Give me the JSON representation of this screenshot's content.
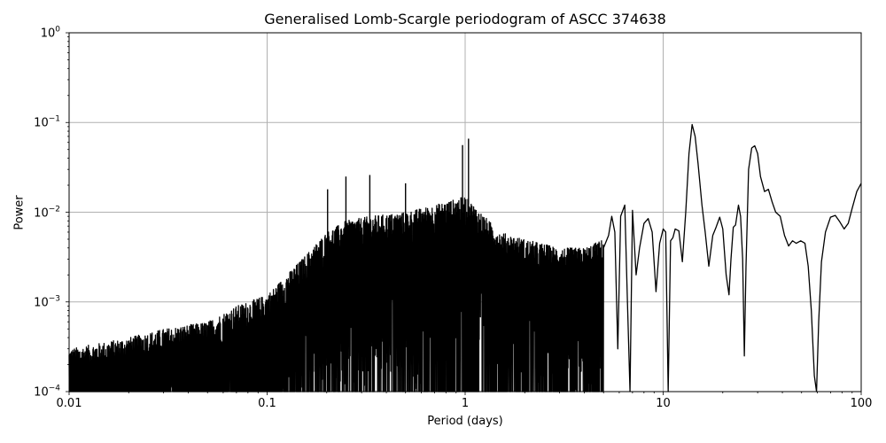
{
  "chart_data": {
    "type": "line",
    "title": "Generalised Lomb-Scargle periodogram of ASCC 374638",
    "xlabel": "Period (days)",
    "ylabel": "Power",
    "xscale": "log",
    "yscale": "log",
    "xlim": [
      0.01,
      100
    ],
    "ylim": [
      0.0001,
      1
    ],
    "grid": true,
    "legend": null,
    "line_color": "#000000",
    "grid_color": "#b0b0b0",
    "x_ticks": [
      {
        "value": 0.01,
        "label": "0.01"
      },
      {
        "value": 0.1,
        "label": "0.1"
      },
      {
        "value": 1,
        "label": "1"
      },
      {
        "value": 10,
        "label": "10"
      },
      {
        "value": 100,
        "label": "100"
      }
    ],
    "y_ticks": [
      {
        "value": 1,
        "base": "10",
        "exp": "0"
      },
      {
        "value": 0.1,
        "base": "10",
        "exp": "−1"
      },
      {
        "value": 0.01,
        "base": "10",
        "exp": "−2"
      },
      {
        "value": 0.001,
        "base": "10",
        "exp": "−3"
      },
      {
        "value": 0.0001,
        "base": "10",
        "exp": "−4"
      }
    ],
    "noisy_envelope": {
      "description": "Dense oscillating periodogram region (approximate upper envelope of peaks) for periods 0.01–5 d",
      "period": [
        0.01,
        0.02,
        0.03,
        0.05,
        0.07,
        0.1,
        0.15,
        0.2,
        0.25,
        0.33,
        0.5,
        0.7,
        1.0,
        1.5,
        2.0,
        3.0,
        4.0,
        5.0
      ],
      "upper_power": [
        0.0003,
        0.0004,
        0.0005,
        0.0006,
        0.0009,
        0.0012,
        0.003,
        0.006,
        0.008,
        0.009,
        0.01,
        0.012,
        0.015,
        0.006,
        0.005,
        0.004,
        0.004,
        0.005
      ]
    },
    "notable_peaks": [
      {
        "period": 0.202,
        "power": 0.018
      },
      {
        "period": 0.25,
        "power": 0.025
      },
      {
        "period": 0.33,
        "power": 0.026
      },
      {
        "period": 0.5,
        "power": 0.021
      },
      {
        "period": 0.97,
        "power": 0.056
      },
      {
        "period": 1.04,
        "power": 0.066
      },
      {
        "period": 14.0,
        "power": 0.095
      },
      {
        "period": 28.5,
        "power": 0.055
      }
    ],
    "smooth_series": {
      "description": "Long-period smooth part of the periodogram",
      "period": [
        5.0,
        5.3,
        5.5,
        5.7,
        5.9,
        6.1,
        6.4,
        6.6,
        6.8,
        7.0,
        7.3,
        7.6,
        8.0,
        8.4,
        8.8,
        9.2,
        9.6,
        10.0,
        10.3,
        10.6,
        10.9,
        11.2,
        11.5,
        12.0,
        12.5,
        13.0,
        13.5,
        14.0,
        14.5,
        15.0,
        15.7,
        16.3,
        17.0,
        17.8,
        18.5,
        19.3,
        20.0,
        20.8,
        21.5,
        22.0,
        22.6,
        23.2,
        24.0,
        24.6,
        25.2,
        25.7,
        26.2,
        27.0,
        28.0,
        29.0,
        30.0,
        31.0,
        32.5,
        34.0,
        35.5,
        37.0,
        39.0,
        41.0,
        43.0,
        45.0,
        47.0,
        49.5,
        52.0,
        54.0,
        56.0,
        58.0,
        59.5,
        61.0,
        63.0,
        66.0,
        70.0,
        74.0,
        78.0,
        82.0,
        86.0,
        90.0,
        95.0,
        100.0
      ],
      "power": [
        0.004,
        0.0055,
        0.009,
        0.006,
        0.0003,
        0.009,
        0.012,
        0.001,
        0.0001,
        0.0105,
        0.002,
        0.004,
        0.0075,
        0.0085,
        0.006,
        0.0013,
        0.0045,
        0.0065,
        0.006,
        0.0001,
        0.0048,
        0.0052,
        0.0065,
        0.0062,
        0.0028,
        0.01,
        0.045,
        0.095,
        0.07,
        0.035,
        0.012,
        0.006,
        0.0025,
        0.0055,
        0.0068,
        0.0088,
        0.0065,
        0.002,
        0.0012,
        0.003,
        0.0068,
        0.0072,
        0.012,
        0.009,
        0.003,
        0.00025,
        0.0025,
        0.03,
        0.052,
        0.055,
        0.045,
        0.025,
        0.017,
        0.018,
        0.013,
        0.01,
        0.009,
        0.0055,
        0.0042,
        0.0048,
        0.0045,
        0.0048,
        0.0045,
        0.0025,
        0.0008,
        0.00015,
        8e-05,
        0.0006,
        0.0028,
        0.006,
        0.0088,
        0.0092,
        0.0078,
        0.0065,
        0.0075,
        0.011,
        0.017,
        0.021
      ]
    }
  }
}
